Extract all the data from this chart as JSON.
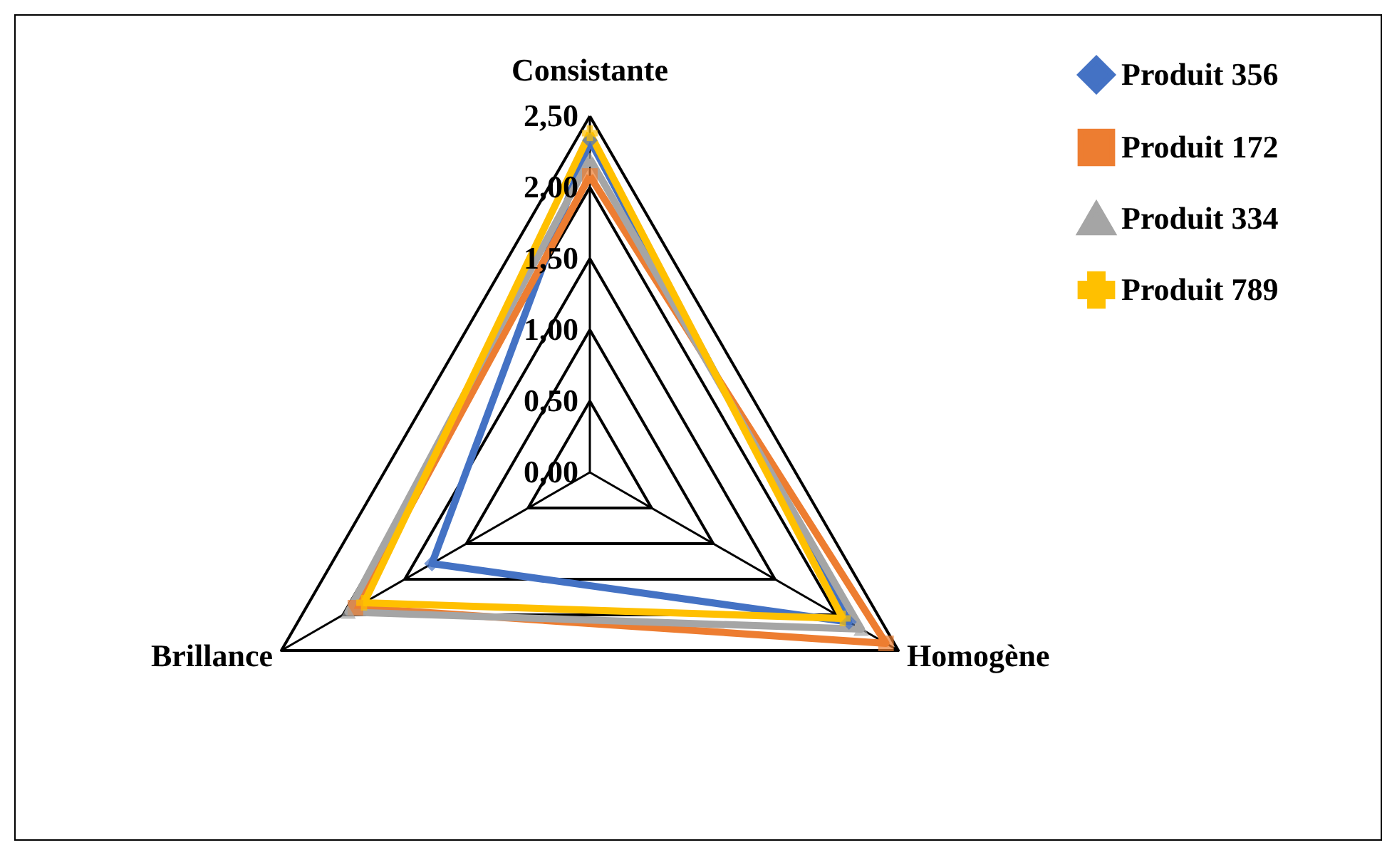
{
  "chart_data": {
    "type": "radar",
    "categories": [
      "Consistante",
      "Homogène",
      "Brillance"
    ],
    "series": [
      {
        "name": "Produit 356",
        "color": "#4472c4",
        "marker": "diamond",
        "values": [
          2.33,
          2.1,
          1.28
        ]
      },
      {
        "name": "Produit 172",
        "color": "#ed7d31",
        "marker": "square",
        "values": [
          2.08,
          2.4,
          1.9
        ]
      },
      {
        "name": "Produit 334",
        "color": "#a5a5a5",
        "marker": "triangle",
        "values": [
          2.2,
          2.2,
          1.96
        ]
      },
      {
        "name": "Produit 789",
        "color": "#ffc000",
        "marker": "cross",
        "values": [
          2.38,
          2.05,
          1.83
        ]
      }
    ],
    "ylim": [
      0,
      2.5
    ],
    "yticks": [
      {
        "value": 0,
        "label": "0,00"
      },
      {
        "value": 0.5,
        "label": "0,50"
      },
      {
        "value": 1,
        "label": "1,00"
      },
      {
        "value": 1.5,
        "label": "1,50"
      },
      {
        "value": 2,
        "label": "2,00"
      },
      {
        "value": 2.5,
        "label": "2,50"
      }
    ],
    "grid": true,
    "legend": "top right"
  }
}
